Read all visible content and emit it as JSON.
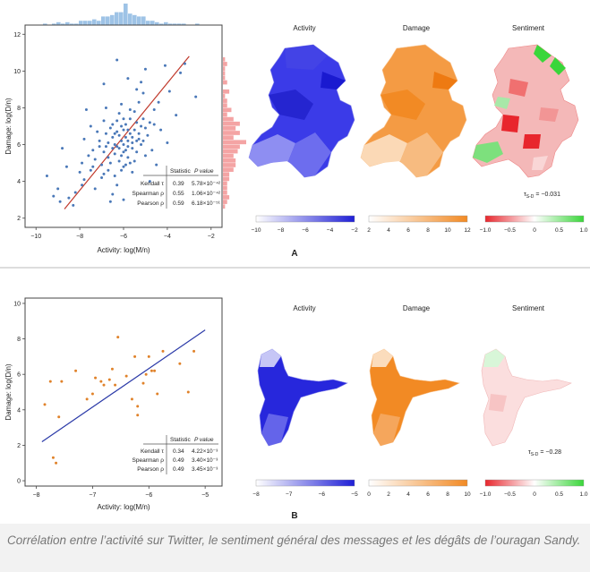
{
  "panel_labels": [
    "A",
    "B"
  ],
  "map_titles": [
    "Activity",
    "Damage",
    "Sentiment"
  ],
  "caption": "Corrélation entre l’activité sur Twitter, le sentiment général des messages et les dégâts de l’ouragan Sandy.",
  "colors": {
    "activity": "#1f1fd6",
    "damage": "#f28a24",
    "sent_neg": "#e8262d",
    "sent_pos": "#3ad63a",
    "points_a": "#4a78b8",
    "points_b": "#e0822a",
    "fit_a": "#c0392b",
    "fit_b": "#2b3aa8"
  },
  "chart_data": [
    {
      "type": "scatter",
      "panel": "A",
      "xlabel": "Activity: log(M/n)",
      "ylabel": "Damage: log(D/n)",
      "xlim": [
        -10.5,
        -1.5
      ],
      "ylim": [
        1.5,
        12.5
      ],
      "xticks": [
        "−10",
        "−8",
        "−6",
        "−4",
        "−2"
      ],
      "yticks": [
        "2",
        "4",
        "6",
        "8",
        "10",
        "12"
      ],
      "fit_line": [
        [
          -8.7,
          2.5
        ],
        [
          -3.0,
          10.8
        ]
      ],
      "stats": {
        "header": [
          "Statistic",
          "P value"
        ],
        "rows": [
          [
            "Kendall τ",
            "0.39",
            "5.78×10⁻⁴²"
          ],
          [
            "Spearman ρ",
            "0.55",
            "1.06×10⁻⁴²"
          ],
          [
            "Pearson ρ",
            "0.59",
            "6.18×10⁻⁵¹"
          ]
        ]
      },
      "points": [
        [
          -6.1,
          6.2
        ],
        [
          -5.8,
          5.9
        ],
        [
          -6.4,
          6.0
        ],
        [
          -6.0,
          5.6
        ],
        [
          -5.5,
          6.8
        ],
        [
          -6.7,
          5.3
        ],
        [
          -5.2,
          7.0
        ],
        [
          -6.3,
          6.7
        ],
        [
          -5.9,
          6.4
        ],
        [
          -6.8,
          5.9
        ],
        [
          -5.6,
          6.1
        ],
        [
          -6.2,
          5.1
        ],
        [
          -5.0,
          6.9
        ],
        [
          -7.0,
          4.9
        ],
        [
          -5.7,
          7.4
        ],
        [
          -6.5,
          6.4
        ],
        [
          -5.4,
          5.6
        ],
        [
          -6.1,
          7.0
        ],
        [
          -6.9,
          5.6
        ],
        [
          -5.3,
          6.3
        ],
        [
          -6.0,
          6.0
        ],
        [
          -5.8,
          5.3
        ],
        [
          -6.6,
          6.9
        ],
        [
          -5.1,
          7.4
        ],
        [
          -7.3,
          5.2
        ],
        [
          -6.2,
          6.5
        ],
        [
          -5.5,
          7.8
        ],
        [
          -6.4,
          5.5
        ],
        [
          -4.8,
          7.2
        ],
        [
          -7.5,
          4.6
        ],
        [
          -6.0,
          6.8
        ],
        [
          -5.9,
          4.9
        ],
        [
          -6.3,
          7.3
        ],
        [
          -5.6,
          5.8
        ],
        [
          -7.1,
          6.2
        ],
        [
          -5.2,
          6.0
        ],
        [
          -6.7,
          4.6
        ],
        [
          -4.6,
          7.9
        ],
        [
          -6.5,
          5.8
        ],
        [
          -5.7,
          6.6
        ],
        [
          -7.8,
          4.1
        ],
        [
          -6.1,
          5.4
        ],
        [
          -5.4,
          7.2
        ],
        [
          -6.8,
          6.6
        ],
        [
          -5.0,
          5.4
        ],
        [
          -6.2,
          7.7
        ],
        [
          -7.4,
          5.7
        ],
        [
          -5.8,
          6.2
        ],
        [
          -4.4,
          8.3
        ],
        [
          -6.6,
          5.0
        ],
        [
          -8.2,
          3.4
        ],
        [
          -6.0,
          4.8
        ],
        [
          -5.3,
          8.3
        ],
        [
          -7.2,
          6.7
        ],
        [
          -5.9,
          7.1
        ],
        [
          -6.4,
          4.3
        ],
        [
          -4.9,
          6.5
        ],
        [
          -8.5,
          3.1
        ],
        [
          -6.9,
          7.3
        ],
        [
          -5.5,
          5.1
        ],
        [
          -3.9,
          8.9
        ],
        [
          -7.6,
          5.4
        ],
        [
          -6.3,
          3.8
        ],
        [
          -5.1,
          8.8
        ],
        [
          -8.9,
          2.9
        ],
        [
          -6.1,
          8.2
        ],
        [
          -7.0,
          4.2
        ],
        [
          -4.3,
          6.8
        ],
        [
          -8.0,
          4.5
        ],
        [
          -5.6,
          4.5
        ],
        [
          -6.8,
          8.0
        ],
        [
          -4.7,
          5.7
        ],
        [
          -7.8,
          6.3
        ],
        [
          -3.6,
          7.6
        ],
        [
          -9.0,
          3.6
        ],
        [
          -5.2,
          9.4
        ],
        [
          -6.5,
          3.3
        ],
        [
          -4.1,
          10.3
        ],
        [
          -7.5,
          7.0
        ],
        [
          -8.3,
          2.7
        ],
        [
          -5.8,
          9.6
        ],
        [
          -6.3,
          10.6
        ],
        [
          -3.4,
          9.9
        ],
        [
          -9.2,
          3.2
        ],
        [
          -4.5,
          4.9
        ],
        [
          -7.9,
          5.0
        ],
        [
          -5.0,
          10.1
        ],
        [
          -6.0,
          3.0
        ],
        [
          -8.6,
          4.8
        ],
        [
          -4.0,
          6.1
        ],
        [
          -7.3,
          3.6
        ],
        [
          -3.2,
          10.4
        ],
        [
          -5.4,
          9.0
        ],
        [
          -6.9,
          9.3
        ],
        [
          -2.7,
          8.6
        ],
        [
          -8.8,
          5.8
        ],
        [
          -9.5,
          4.3
        ],
        [
          -6.6,
          2.9
        ],
        [
          -7.7,
          7.9
        ],
        [
          -4.8,
          4.0
        ],
        [
          -5.7,
          7.9
        ],
        [
          -6.2,
          5.8
        ],
        [
          -5.3,
          6.6
        ],
        [
          -6.7,
          6.1
        ],
        [
          -5.9,
          5.7
        ],
        [
          -6.4,
          6.6
        ],
        [
          -5.6,
          6.4
        ],
        [
          -6.1,
          4.6
        ],
        [
          -7.1,
          5.9
        ],
        [
          -5.4,
          6.2
        ],
        [
          -6.0,
          7.4
        ],
        [
          -6.9,
          4.4
        ],
        [
          -5.1,
          6.2
        ],
        [
          -6.5,
          7.1
        ],
        [
          -7.4,
          4.8
        ],
        [
          -5.7,
          5.0
        ],
        [
          -4.6,
          7.1
        ],
        [
          -7.9,
          3.8
        ],
        [
          -6.3,
          5.9
        ],
        [
          -5.8,
          6.8
        ]
      ]
    },
    {
      "type": "scatter",
      "panel": "B",
      "xlabel": "Activity: log(M/n)",
      "ylabel": "Damage: log(D/n)",
      "xlim": [
        -8.2,
        -4.7
      ],
      "ylim": [
        -0.3,
        10.3
      ],
      "xticks": [
        "−8",
        "−7",
        "−6",
        "−5"
      ],
      "yticks": [
        "0",
        "2",
        "4",
        "6",
        "8",
        "10"
      ],
      "fit_line": [
        [
          -7.9,
          2.2
        ],
        [
          -5.0,
          8.5
        ]
      ],
      "stats": {
        "header": [
          "Statistic",
          "P value"
        ],
        "rows": [
          [
            "Kendall τ",
            "0.34",
            "4.22×10⁻³"
          ],
          [
            "Spearman ρ",
            "0.49",
            "3.40×10⁻³"
          ],
          [
            "Pearson ρ",
            "0.49",
            "3.45×10⁻³"
          ]
        ]
      },
      "points": [
        [
          -7.75,
          5.6
        ],
        [
          -7.55,
          5.6
        ],
        [
          -7.85,
          4.3
        ],
        [
          -7.6,
          3.6
        ],
        [
          -7.7,
          1.3
        ],
        [
          -7.65,
          1.0
        ],
        [
          -7.1,
          4.6
        ],
        [
          -7.0,
          4.9
        ],
        [
          -6.95,
          5.8
        ],
        [
          -6.85,
          5.6
        ],
        [
          -6.8,
          5.4
        ],
        [
          -6.7,
          5.7
        ],
        [
          -6.6,
          5.4
        ],
        [
          -6.55,
          8.1
        ],
        [
          -6.4,
          5.9
        ],
        [
          -6.3,
          4.6
        ],
        [
          -6.25,
          7.0
        ],
        [
          -6.2,
          3.7
        ],
        [
          -6.2,
          4.2
        ],
        [
          -6.1,
          5.5
        ],
        [
          -6.05,
          6.0
        ],
        [
          -6.0,
          7.0
        ],
        [
          -5.95,
          6.2
        ],
        [
          -5.9,
          6.2
        ],
        [
          -5.85,
          4.9
        ],
        [
          -5.75,
          7.3
        ],
        [
          -5.45,
          6.6
        ],
        [
          -5.3,
          5.0
        ],
        [
          -5.2,
          7.3
        ],
        [
          -7.3,
          6.2
        ],
        [
          -6.65,
          6.3
        ]
      ]
    }
  ]
}
